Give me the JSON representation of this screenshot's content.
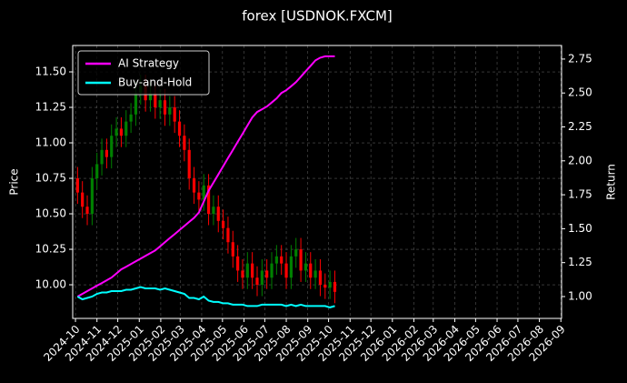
{
  "chart_data": {
    "type": "candlestick",
    "title": "forex [USDNOK.FXCM]",
    "y_label": "Price",
    "y2_label": "Return",
    "up_color": "#008000",
    "down_color": "#ff0000",
    "grid": true,
    "legend": "upper left",
    "x": [
      "2024-10-04",
      "2024-10-11",
      "2024-10-18",
      "2024-10-25",
      "2024-11-01",
      "2024-11-08",
      "2024-11-15",
      "2024-11-22",
      "2024-11-29",
      "2024-12-06",
      "2024-12-13",
      "2024-12-20",
      "2024-12-27",
      "2025-01-03",
      "2025-01-10",
      "2025-01-17",
      "2025-01-24",
      "2025-01-31",
      "2025-02-07",
      "2025-02-14",
      "2025-02-21",
      "2025-02-28",
      "2025-03-07",
      "2025-03-14",
      "2025-03-21",
      "2025-03-28",
      "2025-04-04",
      "2025-04-11",
      "2025-04-18",
      "2025-04-25",
      "2025-05-02",
      "2025-05-09",
      "2025-05-16",
      "2025-05-23",
      "2025-05-30",
      "2025-06-06",
      "2025-06-13",
      "2025-06-20",
      "2025-06-27",
      "2025-07-04",
      "2025-07-11",
      "2025-07-18",
      "2025-07-25",
      "2025-08-01",
      "2025-08-08",
      "2025-08-15",
      "2025-08-22",
      "2025-08-29",
      "2025-09-05",
      "2025-09-12",
      "2025-09-19",
      "2025-09-26",
      "2025-10-03",
      "2025-10-10"
    ],
    "open": [
      10.75,
      10.65,
      10.55,
      10.5,
      10.75,
      10.85,
      10.95,
      10.9,
      11.05,
      11.1,
      11.05,
      11.15,
      11.2,
      11.35,
      11.4,
      11.3,
      11.35,
      11.25,
      11.3,
      11.2,
      11.25,
      11.15,
      11.05,
      10.95,
      10.75,
      10.65,
      10.6,
      10.7,
      10.5,
      10.55,
      10.45,
      10.4,
      10.3,
      10.2,
      10.1,
      10.05,
      10.15,
      10.05,
      10.0,
      10.1,
      10.05,
      10.15,
      10.2,
      10.15,
      10.05,
      10.2,
      10.25,
      10.1,
      10.15,
      10.05,
      10.1,
      10.0,
      9.98,
      10.02
    ],
    "high": [
      10.83,
      10.73,
      10.63,
      10.83,
      10.93,
      11.03,
      11.03,
      11.13,
      11.18,
      11.18,
      11.23,
      11.28,
      11.43,
      11.48,
      11.48,
      11.43,
      11.43,
      11.38,
      11.38,
      11.33,
      11.33,
      11.23,
      11.13,
      11.03,
      10.83,
      10.73,
      10.78,
      10.78,
      10.63,
      10.63,
      10.53,
      10.48,
      10.38,
      10.28,
      10.18,
      10.23,
      10.23,
      10.13,
      10.18,
      10.18,
      10.23,
      10.28,
      10.28,
      10.23,
      10.28,
      10.33,
      10.33,
      10.23,
      10.23,
      10.18,
      10.18,
      10.08,
      10.1,
      10.1
    ],
    "low": [
      10.57,
      10.47,
      10.42,
      10.42,
      10.67,
      10.77,
      10.82,
      10.82,
      10.97,
      10.97,
      10.97,
      11.07,
      11.12,
      11.27,
      11.22,
      11.22,
      11.17,
      11.17,
      11.12,
      11.12,
      11.07,
      10.97,
      10.87,
      10.67,
      10.57,
      10.52,
      10.52,
      10.42,
      10.42,
      10.37,
      10.32,
      10.22,
      10.12,
      10.02,
      9.97,
      9.97,
      9.97,
      9.92,
      9.92,
      9.97,
      9.97,
      10.07,
      10.07,
      9.97,
      9.97,
      10.12,
      10.02,
      10.02,
      9.97,
      9.97,
      9.92,
      9.9,
      9.9,
      9.87
    ],
    "close": [
      10.65,
      10.55,
      10.5,
      10.75,
      10.85,
      10.95,
      10.9,
      11.05,
      11.1,
      11.05,
      11.15,
      11.2,
      11.35,
      11.4,
      11.3,
      11.35,
      11.25,
      11.3,
      11.2,
      11.25,
      11.15,
      11.05,
      10.95,
      10.75,
      10.65,
      10.6,
      10.7,
      10.5,
      10.55,
      10.45,
      10.4,
      10.3,
      10.2,
      10.1,
      10.05,
      10.15,
      10.05,
      10.0,
      10.1,
      10.05,
      10.15,
      10.2,
      10.15,
      10.05,
      10.2,
      10.25,
      10.1,
      10.15,
      10.05,
      10.1,
      10.0,
      9.98,
      10.02,
      9.95
    ],
    "series": [
      {
        "name": "AI Strategy",
        "color": "#ff00ff",
        "axis": "y2",
        "values": [
          1.0,
          1.02,
          1.04,
          1.06,
          1.08,
          1.1,
          1.12,
          1.14,
          1.17,
          1.2,
          1.22,
          1.24,
          1.26,
          1.28,
          1.3,
          1.32,
          1.34,
          1.37,
          1.4,
          1.43,
          1.46,
          1.49,
          1.52,
          1.55,
          1.58,
          1.62,
          1.7,
          1.78,
          1.84,
          1.9,
          1.96,
          2.02,
          2.08,
          2.14,
          2.2,
          2.26,
          2.32,
          2.36,
          2.38,
          2.4,
          2.43,
          2.46,
          2.5,
          2.52,
          2.55,
          2.58,
          2.62,
          2.66,
          2.7,
          2.74,
          2.76,
          2.77,
          2.77,
          2.77
        ]
      },
      {
        "name": "Buy-and-Hold",
        "color": "#00ffff",
        "axis": "y2",
        "values": [
          1.0,
          0.98,
          0.99,
          1.0,
          1.02,
          1.03,
          1.03,
          1.04,
          1.04,
          1.04,
          1.05,
          1.05,
          1.06,
          1.07,
          1.06,
          1.06,
          1.06,
          1.05,
          1.06,
          1.05,
          1.04,
          1.03,
          1.02,
          0.99,
          0.99,
          0.98,
          1.0,
          0.97,
          0.96,
          0.96,
          0.95,
          0.95,
          0.94,
          0.94,
          0.94,
          0.93,
          0.93,
          0.93,
          0.94,
          0.94,
          0.94,
          0.94,
          0.94,
          0.93,
          0.94,
          0.93,
          0.94,
          0.93,
          0.93,
          0.93,
          0.93,
          0.93,
          0.92,
          0.93
        ]
      }
    ],
    "xlim": [
      "2024-09-27",
      "2026-09-02"
    ],
    "xticks": [
      {
        "value": "2024-10-01",
        "label": "2024-10"
      },
      {
        "value": "2024-11-01",
        "label": "2024-11"
      },
      {
        "value": "2024-12-01",
        "label": "2024-12"
      },
      {
        "value": "2025-01-01",
        "label": "2025-01"
      },
      {
        "value": "2025-02-01",
        "label": "2025-02"
      },
      {
        "value": "2025-03-01",
        "label": "2025-03"
      },
      {
        "value": "2025-04-01",
        "label": "2025-04"
      },
      {
        "value": "2025-05-01",
        "label": "2025-05"
      },
      {
        "value": "2025-06-01",
        "label": "2025-06"
      },
      {
        "value": "2025-07-01",
        "label": "2025-07"
      },
      {
        "value": "2025-08-01",
        "label": "2025-08"
      },
      {
        "value": "2025-09-01",
        "label": "2025-09"
      },
      {
        "value": "2025-10-01",
        "label": "2025-10"
      },
      {
        "value": "2025-11-01",
        "label": "2025-11"
      },
      {
        "value": "2025-12-01",
        "label": "2025-12"
      },
      {
        "value": "2026-01-01",
        "label": "2026-01"
      },
      {
        "value": "2026-02-01",
        "label": "2026-02"
      },
      {
        "value": "2026-03-01",
        "label": "2026-03"
      },
      {
        "value": "2026-04-01",
        "label": "2026-04"
      },
      {
        "value": "2026-05-01",
        "label": "2026-05"
      },
      {
        "value": "2026-06-01",
        "label": "2026-06"
      },
      {
        "value": "2026-07-01",
        "label": "2026-07"
      },
      {
        "value": "2026-08-01",
        "label": "2026-08"
      },
      {
        "value": "2026-09-01",
        "label": "2026-09"
      }
    ],
    "ylim": [
      9.763,
      11.686
    ],
    "yticks": [
      {
        "value": 10.0,
        "label": "10.00"
      },
      {
        "value": 10.25,
        "label": "10.25"
      },
      {
        "value": 10.5,
        "label": "10.50"
      },
      {
        "value": 10.75,
        "label": "10.75"
      },
      {
        "value": 11.0,
        "label": "11.00"
      },
      {
        "value": 11.25,
        "label": "11.25"
      },
      {
        "value": 11.5,
        "label": "11.50"
      }
    ],
    "y2lim": [
      0.839,
      2.85
    ],
    "y2ticks": [
      {
        "value": 1.0,
        "label": "1.00"
      },
      {
        "value": 1.25,
        "label": "1.25"
      },
      {
        "value": 1.5,
        "label": "1.50"
      },
      {
        "value": 1.75,
        "label": "1.75"
      },
      {
        "value": 2.0,
        "label": "2.00"
      },
      {
        "value": 2.25,
        "label": "2.25"
      },
      {
        "value": 2.5,
        "label": "2.50"
      },
      {
        "value": 2.75,
        "label": "2.75"
      }
    ]
  }
}
